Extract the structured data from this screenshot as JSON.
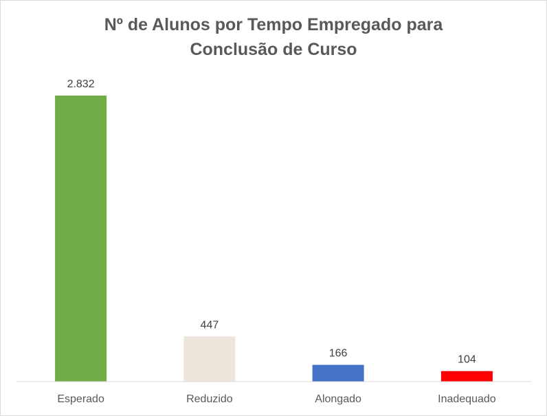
{
  "chart_data": {
    "type": "bar",
    "title_lines": [
      "Nº de Alunos por Tempo Empregado para",
      "Conclusão de Curso"
    ],
    "categories": [
      "Esperado",
      "Reduzido",
      "Alongado",
      "Inadequado"
    ],
    "values": [
      2832,
      447,
      166,
      104
    ],
    "value_labels": [
      "2.832",
      "447",
      "166",
      "104"
    ],
    "colors": [
      "#70ad47",
      "#ede6dc",
      "#4472c4",
      "#ff0000"
    ],
    "ylim": [
      0,
      2832
    ],
    "grid": false,
    "legend": "none",
    "xlabel": "",
    "ylabel": ""
  }
}
